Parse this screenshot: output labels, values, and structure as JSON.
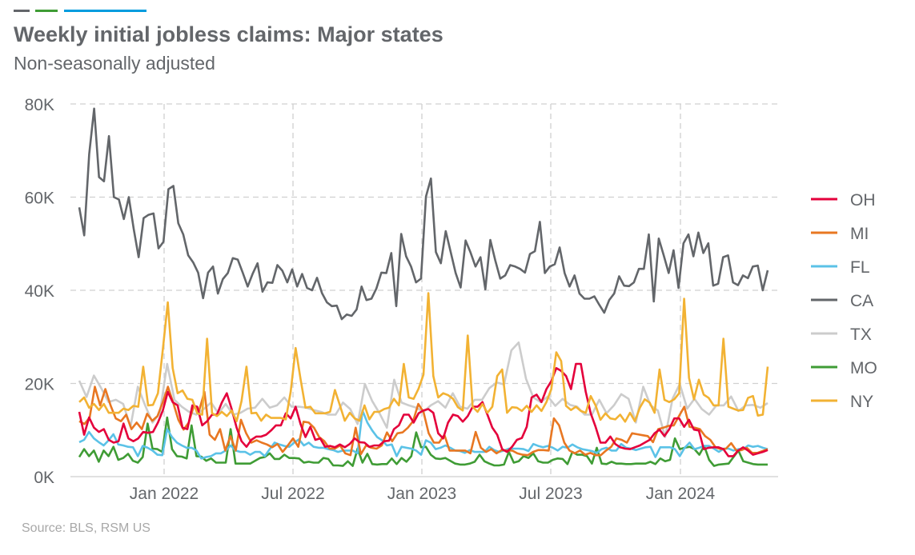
{
  "header": {
    "title": "Weekly initial jobless claims: Major states",
    "subtitle": "Non-seasonally adjusted"
  },
  "footer": {
    "source": "Source: BLS, RSM US"
  },
  "decor_bar_colors": [
    "#63666a",
    "#3f9c35",
    "#009cde"
  ],
  "chart_data": {
    "type": "line",
    "title": "Weekly initial jobless claims: Major states",
    "subtitle": "Non-seasonally adjusted",
    "xlabel": "",
    "ylabel": "",
    "value_unit": "thousands",
    "ylim": [
      0,
      80
    ],
    "y_ticks": [
      0,
      20,
      40,
      60,
      80
    ],
    "y_tick_labels": [
      "0K",
      "20K",
      "40K",
      "60K",
      "80K"
    ],
    "x_tick_labels": [
      "Jan 2022",
      "Jul 2022",
      "Jan 2023",
      "Jul 2023",
      "Jan 2024"
    ],
    "grid": "dashed, both axes",
    "legend_position": "right",
    "series": [
      {
        "name": "OH",
        "color": "#e4003b",
        "values": [
          13.9,
          9,
          12.7,
          10.5,
          9.6,
          10.2,
          7.9,
          7.3,
          7.6,
          11.4,
          8.2,
          7.6,
          8.2,
          9.6,
          9.4,
          9.6,
          11.6,
          14.2,
          18.2,
          16,
          15.3,
          10.5,
          10.2,
          15.3,
          15,
          11,
          11.9,
          13.3,
          13.3,
          15.9,
          17.9,
          14.5,
          10.5,
          7.6,
          6.4,
          7.9,
          8.6,
          8.6,
          9,
          9.9,
          11,
          11,
          13.6,
          12.5,
          15,
          11.3,
          8.5,
          10.7,
          7.9,
          8.2,
          6.4,
          6.6,
          6.3,
          6.9,
          6.3,
          7,
          8.2,
          7.4,
          7.3,
          6.4,
          6.7,
          6.7,
          7.6,
          7.7,
          10.2,
          11,
          13.3,
          13.3,
          11.6,
          13.6,
          14.2,
          14.5,
          13.7,
          9.3,
          8.2,
          11.6,
          13.3,
          13,
          11.8,
          13,
          15,
          15,
          16,
          13.3,
          10.5,
          9,
          5.9,
          5.3,
          6.4,
          7.9,
          8.3,
          10.7,
          17,
          17.6,
          16,
          18.8,
          20.5,
          23.3,
          22.7,
          21.6,
          18.8,
          24.2,
          24.2,
          18.2,
          13.6,
          10.7,
          7.3,
          7.3,
          8.6,
          7,
          6.3,
          6,
          5.9,
          6.3,
          6.7,
          7.3,
          7.9,
          9.3,
          10.1,
          8.7,
          10.2,
          12.5,
          12.5,
          10.7,
          12.2,
          10.1,
          9.9,
          5.9,
          6.2,
          6.3,
          6.3,
          5.9,
          4.4,
          4.4,
          5.6,
          6.3,
          5.6,
          4.7,
          5,
          5.3,
          5.7
        ]
      },
      {
        "name": "MI",
        "color": "#e87722",
        "values": [
          11.9,
          11.3,
          12.7,
          19.3,
          15.3,
          18.8,
          15.3,
          12.5,
          11.9,
          13.3,
          10.2,
          11.6,
          10.2,
          13.5,
          12,
          13,
          15.9,
          19.3,
          15.9,
          12.2,
          10.1,
          11.6,
          15.3,
          14.2,
          18.2,
          9,
          7.9,
          10.2,
          5.6,
          8.7,
          5.6,
          12.2,
          9.3,
          7.3,
          7.8,
          7.3,
          6.9,
          6.3,
          7,
          5.3,
          6.7,
          8.2,
          6.4,
          11.8,
          11.6,
          10.5,
          8.5,
          7.6,
          6,
          6,
          6.7,
          5,
          4.6,
          10.5,
          4.8,
          6.7,
          6.2,
          6,
          6.7,
          9.5,
          7.6,
          9.3,
          9.5,
          10.5,
          11.9,
          15.6,
          13.9,
          9.3,
          7.3,
          7.3,
          9,
          5.6,
          5.6,
          5.6,
          5.6,
          5,
          9.6,
          6.2,
          5.3,
          5.9,
          5,
          5.7,
          5.6,
          5.6,
          5,
          4.7,
          4.6,
          5.3,
          5.7,
          5.7,
          5.6,
          12.5,
          11,
          7.3,
          5.6,
          5,
          5.6,
          4.7,
          5.1,
          4.6,
          4.6,
          5.6,
          6.4,
          8.2,
          7.9,
          7.3,
          9.3,
          9.1,
          8.9,
          8.7,
          7.4,
          10.2,
          10.5,
          10.9,
          11,
          13,
          15,
          10.7,
          10.5,
          10.2,
          8.7,
          7.9,
          6.3,
          5.9,
          6,
          7.2,
          5.6,
          5.7,
          6.2,
          5.1,
          5.1,
          5.5,
          5.9
        ]
      },
      {
        "name": "FL",
        "color": "#5bc2e7",
        "values": [
          7.4,
          7.9,
          9.6,
          8.2,
          7.4,
          6.7,
          7.8,
          9.1,
          6.9,
          6.7,
          6.4,
          6.3,
          4.4,
          6.6,
          6.2,
          5.6,
          4.7,
          4.6,
          10.2,
          8.5,
          7.3,
          6.7,
          6.2,
          6.2,
          5.6,
          3.9,
          4.2,
          4.4,
          5,
          5,
          5.6,
          6.7,
          5.6,
          5.3,
          5.3,
          4.7,
          5.3,
          5.3,
          4.4,
          5.9,
          7.3,
          6.9,
          6.6,
          6.4,
          7.3,
          8,
          6.7,
          7.3,
          6.4,
          6.2,
          6.2,
          5.9,
          5.7,
          5.3,
          5.6,
          5.6,
          5.6,
          5,
          14.2,
          11.6,
          9.9,
          8.5,
          7.8,
          6.7,
          6.9,
          4.4,
          6.4,
          6.2,
          6,
          5.6,
          4.7,
          7.8,
          7.3,
          5.9,
          6.2,
          6.7,
          6.2,
          5.6,
          5.5,
          5.1,
          5.7,
          5.3,
          5.3,
          5.3,
          6.4,
          5.7,
          5.3,
          5.6,
          6,
          6,
          6,
          5.9,
          5.5,
          7,
          6.6,
          6.3,
          6.6,
          6.2,
          5.6,
          6.4,
          6.2,
          6.9,
          6.3,
          5.9,
          5.7,
          5.5,
          5.1,
          5.9,
          6.2,
          5.6,
          5.6,
          7,
          6.2,
          6,
          5.7,
          6,
          6.3,
          6.4,
          4.2,
          6.3,
          6.3,
          6.3,
          5.9,
          4.4,
          6.2,
          7.3,
          5.9,
          6.2,
          6.6,
          6.6,
          6,
          5.3,
          6,
          6,
          5.6,
          5.9,
          5.9,
          6.7,
          6.4,
          6.6,
          6.2,
          5.9
        ]
      },
      {
        "name": "CA",
        "color": "#63666a",
        "values": [
          57.8,
          51.8,
          69.2,
          79,
          64.3,
          63.4,
          73.1,
          60,
          59.5,
          55.3,
          60,
          53.1,
          47.1,
          55.5,
          56.2,
          56.5,
          49,
          50.4,
          61.7,
          62.4,
          54.4,
          52,
          47.5,
          46,
          43.8,
          38.3,
          43.8,
          45.1,
          39.3,
          42.4,
          43.7,
          46.9,
          46.6,
          43.8,
          40.8,
          43.5,
          45.8,
          39.7,
          41.7,
          41.6,
          45.4,
          44.2,
          41.7,
          44.5,
          40.8,
          43.5,
          40.5,
          40,
          42.7,
          39.4,
          37.4,
          36.6,
          36.7,
          33.8,
          34.8,
          34.5,
          35.9,
          40.8,
          37.9,
          38.2,
          40.4,
          43.8,
          43.7,
          48,
          36.6,
          52.1,
          47.3,
          45.1,
          41.7,
          42.5,
          60.1,
          64,
          48.2,
          45.8,
          52.7,
          48.2,
          43.7,
          40.6,
          50.7,
          48.1,
          45.1,
          47.1,
          40.2,
          50.8,
          46.4,
          42.5,
          43.2,
          45.4,
          45.1,
          44.6,
          43.8,
          47.8,
          48.4,
          54.7,
          43.7,
          45.1,
          45.6,
          49.2,
          43.7,
          40.8,
          43.2,
          39.3,
          38.2,
          38.2,
          38.7,
          36.9,
          35.2,
          37.9,
          39.3,
          43,
          41,
          40.9,
          41.7,
          44.6,
          44.6,
          52,
          37.6,
          51.1,
          47.5,
          43.7,
          48.6,
          40.5,
          50.1,
          52,
          47.3,
          52.4,
          48,
          50.1,
          41,
          41.4,
          47.1,
          47.5,
          41.7,
          41.1,
          43.2,
          42.6,
          45.1,
          45.3,
          40,
          44.3
        ]
      },
      {
        "name": "TX",
        "color": "#cccccc",
        "values": [
          20.6,
          17.1,
          21.7,
          19,
          16,
          16.5,
          15.6,
          10.7,
          19.3,
          15.3,
          11.6,
          13.6,
          24.2,
          16.5,
          15,
          13.9,
          13.3,
          14.5,
          15.9,
          13.6,
          15.6,
          13.3,
          13.7,
          14.6,
          14.8,
          16.7,
          14.8,
          15.3,
          17,
          15,
          15,
          14.8,
          14.3,
          13.9,
          13.3,
          13.3,
          15.9,
          14.5,
          11.3,
          19.9,
          16.2,
          13.6,
          10.5,
          20.8,
          15.9,
          15.3,
          14.8,
          13.9,
          15.3,
          16.2,
          14.8,
          17.9,
          15,
          14.6,
          16.5,
          16.5,
          19,
          20.2,
          19.8,
          27.1,
          28.8,
          21,
          17,
          16,
          17.2,
          15.2,
          16.7,
          15.4,
          15,
          13.3,
          13.3,
          16.5,
          13.6,
          15.3,
          17.7,
          16.7,
          11.6,
          19.3,
          15.3,
          14.2,
          8.5,
          16.7,
          19.9,
          14.6,
          16.7,
          14.5,
          13.3,
          15.3,
          15.3,
          17.2,
          14.1,
          15.3,
          15.4,
          14.8,
          15.8
        ]
      },
      {
        "name": "MO",
        "color": "#3f9c35",
        "values": [
          4.2,
          5.9,
          4.4,
          5.6,
          3.2,
          5.6,
          4.4,
          6.4,
          3.6,
          4,
          4.9,
          3.4,
          3,
          4.2,
          11.4,
          6,
          5.9,
          5.3,
          12.7,
          5.9,
          4.4,
          4.3,
          3.9,
          11,
          4.4,
          4.3,
          3.4,
          3.9,
          3,
          3,
          3,
          10.2,
          2.8,
          2.8,
          2.8,
          2.8,
          3.4,
          4,
          4.2,
          5,
          3.8,
          3.8,
          4.7,
          4,
          4,
          3.9,
          3,
          3.2,
          3,
          3,
          4,
          3.8,
          2.4,
          2.4,
          2.3,
          3.3,
          2.3,
          6,
          3,
          4.9,
          2.7,
          2.6,
          2.7,
          2.7,
          3.9,
          2.7,
          4,
          3.2,
          4.4,
          9.5,
          6.3,
          6.4,
          4.7,
          3.9,
          3.8,
          4,
          3.4,
          2.8,
          2.6,
          2.6,
          2.8,
          3.2,
          4.7,
          3.3,
          2.8,
          2.4,
          2.4,
          2.6,
          5.3,
          3,
          3.3,
          4.4,
          4,
          5,
          3.3,
          3,
          3,
          3.6,
          3.9,
          3.8,
          2.7,
          5.3,
          4.7,
          4.7,
          4.4,
          2.8,
          6.2,
          2.8,
          2.7,
          3.2,
          2.8,
          2.8,
          2.7,
          2.7,
          2.8,
          2.8,
          2.8,
          3.2,
          2.7,
          3.9,
          3.3,
          3.6,
          8.2,
          5.9,
          6.2,
          6.4,
          5.9,
          4.7,
          6.6,
          3.6,
          2.3,
          2.6,
          2.7,
          2.8,
          4.2,
          5.6,
          3.3,
          3,
          2.7,
          2.6,
          2.6,
          2.6
        ]
      },
      {
        "name": "NY",
        "color": "#f2b233",
        "values": [
          16,
          17,
          14.8,
          15.6,
          14.3,
          15.6,
          13.7,
          13.7,
          13.7,
          14.6,
          14.3,
          15.2,
          15,
          23.6,
          15.3,
          15.4,
          17.9,
          27.3,
          37.4,
          23.3,
          17.9,
          18.5,
          16.7,
          16.5,
          13.6,
          13.3,
          29.6,
          13.6,
          13,
          13.9,
          13,
          14.2,
          11.9,
          16.2,
          23.6,
          13.6,
          13.7,
          12,
          13.3,
          12.6,
          12.6,
          12.6,
          12.3,
          18.2,
          27.6,
          21,
          14.8,
          15,
          13.6,
          13.6,
          13.6,
          13.9,
          18.6,
          15.3,
          12,
          13.7,
          12.5,
          12,
          15.3,
          12.3,
          13.9,
          13.9,
          14.5,
          14.8,
          16.7,
          15.3,
          24.2,
          17,
          16.7,
          18.9,
          21.9,
          39.4,
          21.6,
          17,
          17.9,
          17.5,
          16.7,
          14.9,
          14.2,
          30.3,
          15,
          13.9,
          15.6,
          13.7,
          15,
          21.6,
          23,
          13.7,
          14.9,
          14.8,
          14.1,
          15.2,
          13.9,
          15.3,
          14.1,
          16,
          18.8,
          26.7,
          24.8,
          15.2,
          14.3,
          15,
          14.1,
          13.7,
          17.3,
          15.3,
          12.2,
          13.6,
          12.5,
          12.3,
          13.3,
          11.8,
          13.7,
          11.9,
          14.8,
          16.6,
          15.9,
          13.7,
          23,
          16.5,
          16,
          16.6,
          17.9,
          38.2,
          21.2,
          16.6,
          20.8,
          17.6,
          16.9,
          15.3,
          15.3,
          29.6,
          15,
          14.6,
          14.2,
          14.3,
          16.9,
          17.3,
          13.1,
          13.3,
          23.6
        ]
      }
    ]
  }
}
